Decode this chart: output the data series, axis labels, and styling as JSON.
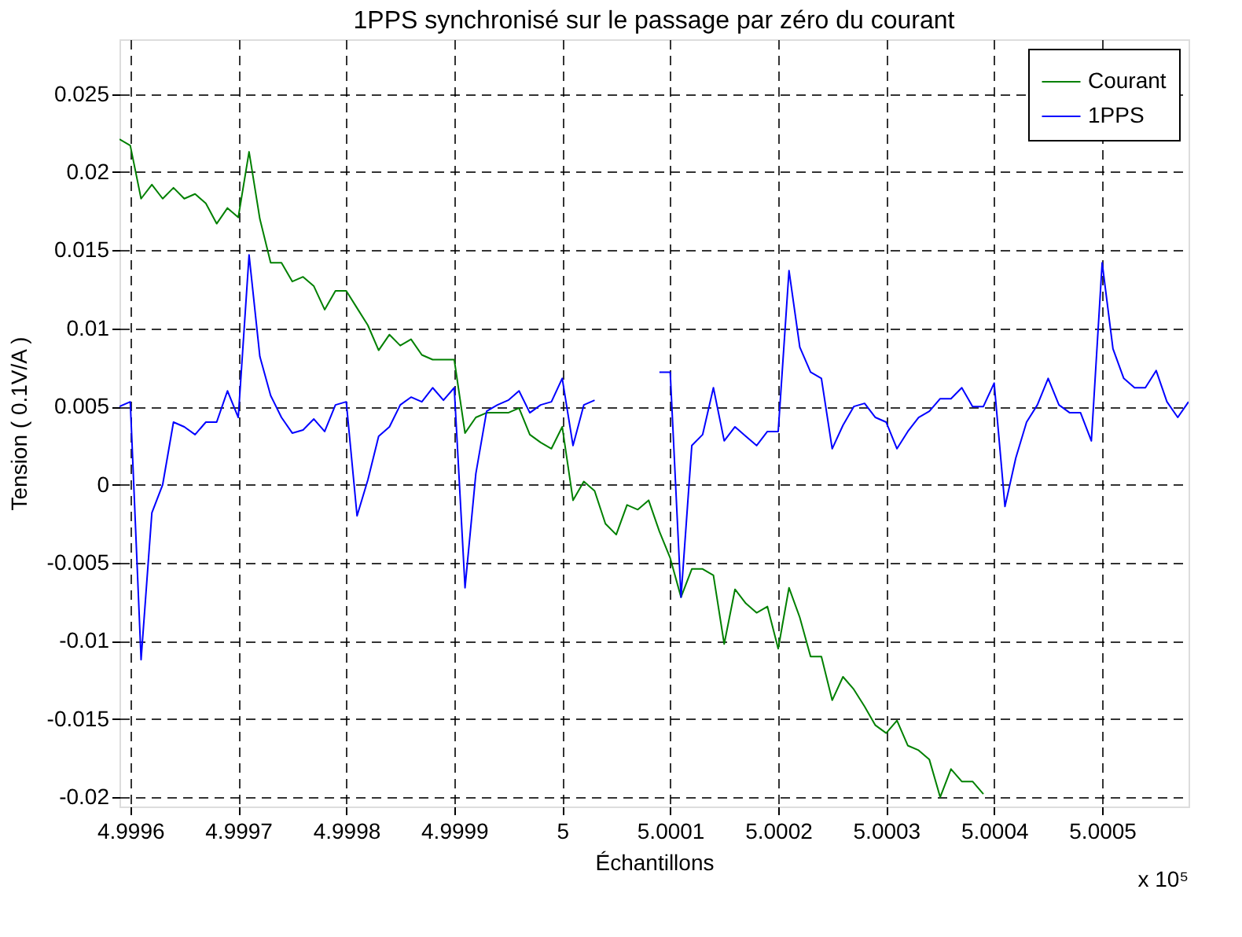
{
  "chart_data": {
    "type": "line",
    "title": "1PPS synchronisé sur le passage par zéro du courant",
    "xlabel": "Échantillons",
    "ylabel": "Tension ( 0.1V/A )",
    "x": [
      4.99959,
      4.9996,
      4.99961,
      4.99962,
      4.99963,
      4.99964,
      4.99965,
      4.99966,
      4.99967,
      4.99968,
      4.99969,
      4.9997,
      4.99971,
      4.99972,
      4.99973,
      4.99974,
      4.99975,
      4.99976,
      4.99977,
      4.99978,
      4.99979,
      4.9998,
      4.99981,
      4.99982,
      4.99983,
      4.99984,
      4.99985,
      4.99986,
      4.99987,
      4.99988,
      4.99989,
      4.9999,
      4.99991,
      4.99992,
      4.99993,
      4.99994,
      4.99995,
      4.99996,
      4.99997,
      4.99998,
      4.99999,
      5,
      5.00001,
      5.00002,
      5.00003,
      5.00004,
      5.00005,
      5.00006,
      5.00007,
      5.00008,
      5.00009,
      5.0001,
      5.00011,
      5.00012,
      5.00013,
      5.00014,
      5.00015,
      5.00016,
      5.00017,
      5.00018,
      5.00019,
      5.0002,
      5.00021,
      5.00022,
      5.00023,
      5.00024,
      5.00025,
      5.00026,
      5.00027,
      5.00028,
      5.00029,
      5.0003,
      5.00031,
      5.00032,
      5.00033,
      5.00034,
      5.00035,
      5.00036,
      5.00037,
      5.00038,
      5.00039,
      5.0004,
      5.00041,
      5.00042,
      5.00043,
      5.00044,
      5.00045,
      5.00046,
      5.00047,
      5.00048,
      5.00049,
      5.0005,
      5.00051,
      5.00052,
      5.00053,
      5.00054,
      5.00055,
      5.00056,
      5.00057,
      5.00058
    ],
    "series": [
      {
        "name": "Courant",
        "color": "#008000",
        "values": [
          0.0221,
          0.0217,
          0.0183,
          0.0192,
          0.0183,
          0.019,
          0.0183,
          0.0186,
          0.018,
          0.0167,
          0.0177,
          0.0171,
          0.0213,
          0.017,
          0.0142,
          0.0142,
          0.013,
          0.0133,
          0.0127,
          0.0112,
          0.0124,
          0.0124,
          0.0113,
          0.0102,
          0.0086,
          0.0096,
          0.0089,
          0.0093,
          0.0083,
          0.008,
          0.008,
          0.008,
          0.0033,
          0.0043,
          0.0046,
          0.0046,
          0.0046,
          0.0049,
          0.0032,
          0.0027,
          0.0023,
          0.0037,
          -0.001,
          0.0002,
          -0.0004,
          -0.0025,
          -0.0032,
          -0.0013,
          -0.0016,
          -0.001,
          -0.003,
          -0.0047,
          -0.0072,
          -0.0054,
          -0.0054,
          -0.0058,
          -0.0102,
          -0.0067,
          -0.0076,
          -0.0082,
          -0.0078,
          -0.0105,
          -0.0066,
          -0.0085,
          -0.011,
          -0.011,
          -0.0138,
          -0.0123,
          -0.0131,
          -0.0142,
          -0.0154,
          -0.0159,
          -0.0151,
          -0.0167,
          -0.017,
          -0.0176,
          -0.02,
          -0.0182,
          -0.019,
          -0.019,
          -0.0198,
          null,
          null,
          null,
          null,
          null,
          null,
          null,
          null,
          null,
          null,
          null,
          null,
          null,
          null,
          null,
          null,
          null,
          null,
          null
        ]
      },
      {
        "name": "1PPS",
        "color": "#0000ff",
        "values": [
          0.005,
          0.0053,
          -0.0112,
          -0.0018,
          0.0,
          0.004,
          0.0037,
          0.0032,
          0.004,
          0.004,
          0.006,
          0.0043,
          0.0147,
          0.0082,
          0.0057,
          0.0043,
          0.0033,
          0.0035,
          0.0042,
          0.0034,
          0.0051,
          0.0053,
          -0.002,
          0.0003,
          0.0031,
          0.0037,
          0.0051,
          0.0056,
          0.0053,
          0.0062,
          0.0054,
          0.0062,
          -0.0066,
          0.0007,
          0.0047,
          0.0051,
          0.0054,
          0.006,
          0.0046,
          0.0051,
          0.0053,
          0.0068,
          0.0025,
          0.0051,
          0.0054,
          null,
          null,
          null,
          null,
          null,
          0.0072,
          0.0072,
          -0.0072,
          0.0025,
          0.0032,
          0.0062,
          0.0028,
          0.0037,
          0.0031,
          0.0025,
          0.0034,
          0.0034,
          0.0137,
          0.0088,
          0.0072,
          0.0068,
          0.0023,
          0.0038,
          0.005,
          0.0052,
          0.0043,
          0.004,
          0.0023,
          0.0034,
          0.0043,
          0.0047,
          0.0055,
          0.0055,
          0.0062,
          0.005,
          0.005,
          0.0065,
          -0.0014,
          0.0017,
          0.004,
          0.0051,
          0.0068,
          0.0051,
          0.0046,
          0.0046,
          0.0028,
          0.0142,
          0.0087,
          0.0068,
          0.0062,
          0.0062,
          0.0073,
          0.0053,
          0.0043,
          0.0053
        ]
      }
    ],
    "xlim": [
      4.99959,
      5.00058
    ],
    "ylim": [
      -0.0206,
      0.0285
    ],
    "xticks": [
      4.9996,
      4.9997,
      4.9998,
      4.9999,
      5,
      5.0001,
      5.0002,
      5.0003,
      5.0004,
      5.0005
    ],
    "yticks": [
      -0.02,
      -0.015,
      -0.01,
      -0.005,
      0,
      0.005,
      0.01,
      0.015,
      0.02,
      0.025
    ],
    "grid": true,
    "legend": "top right",
    "annotations": [
      "x 10⁵"
    ]
  }
}
